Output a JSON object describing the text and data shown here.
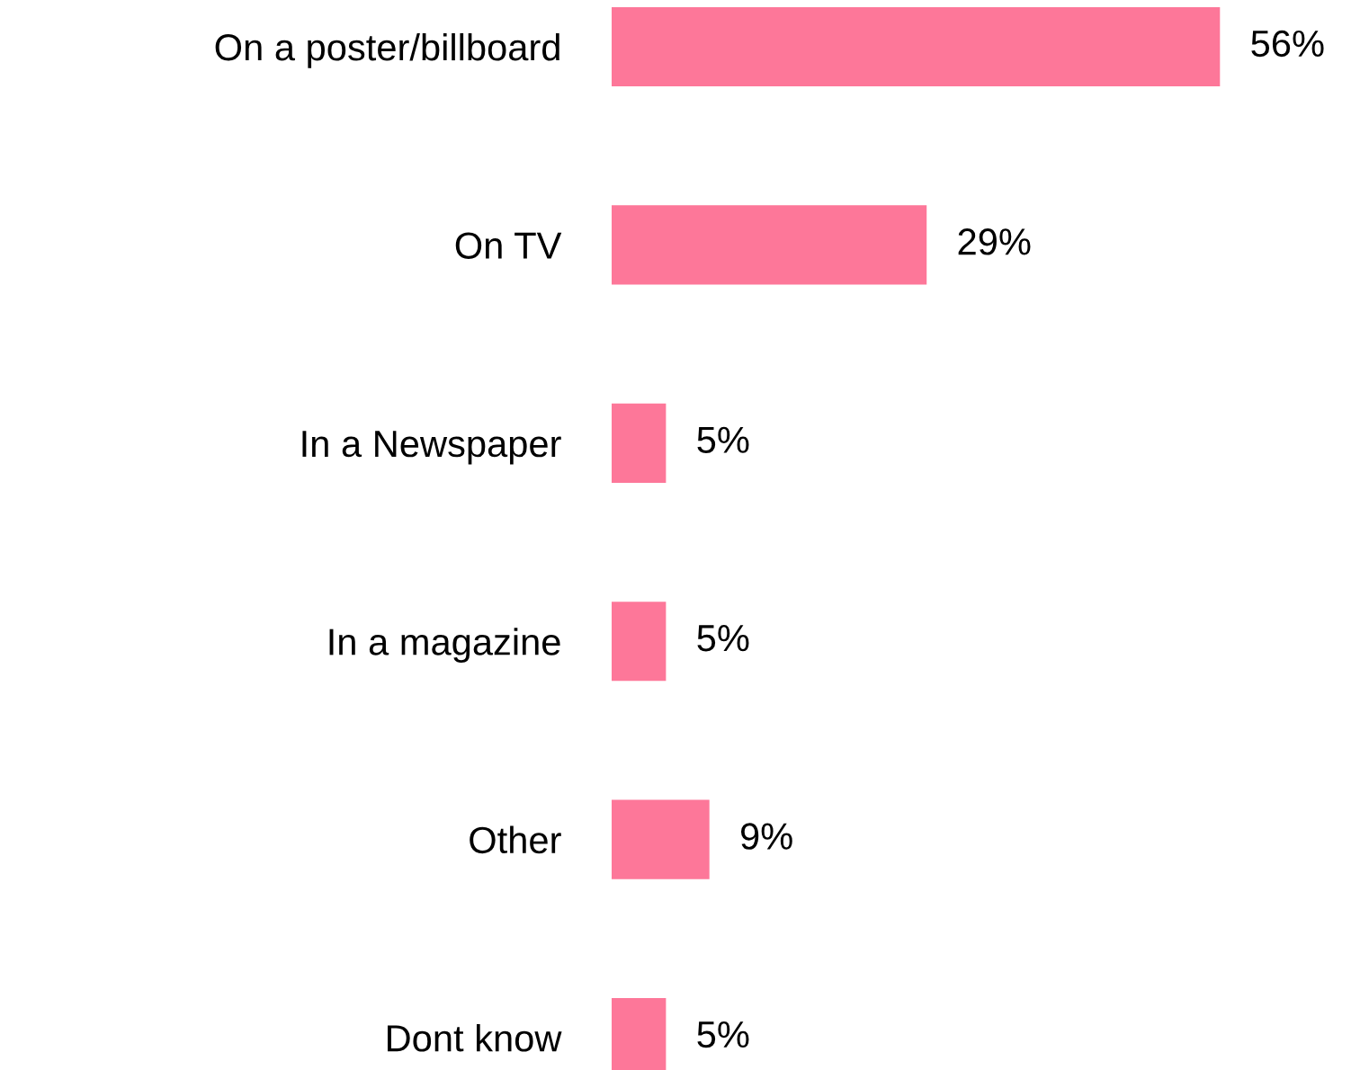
{
  "chart_data": {
    "type": "bar",
    "orientation": "horizontal",
    "categories": [
      "On a poster/billboard",
      "On TV",
      "In a Newspaper",
      "In a magazine",
      "Other",
      "Dont know"
    ],
    "values": [
      56,
      29,
      5,
      5,
      9,
      5
    ],
    "value_labels": [
      "56%",
      "29%",
      "5%",
      "5%",
      "9%",
      "5%"
    ],
    "color": "#fd7799",
    "grid": false,
    "legend": false
  }
}
